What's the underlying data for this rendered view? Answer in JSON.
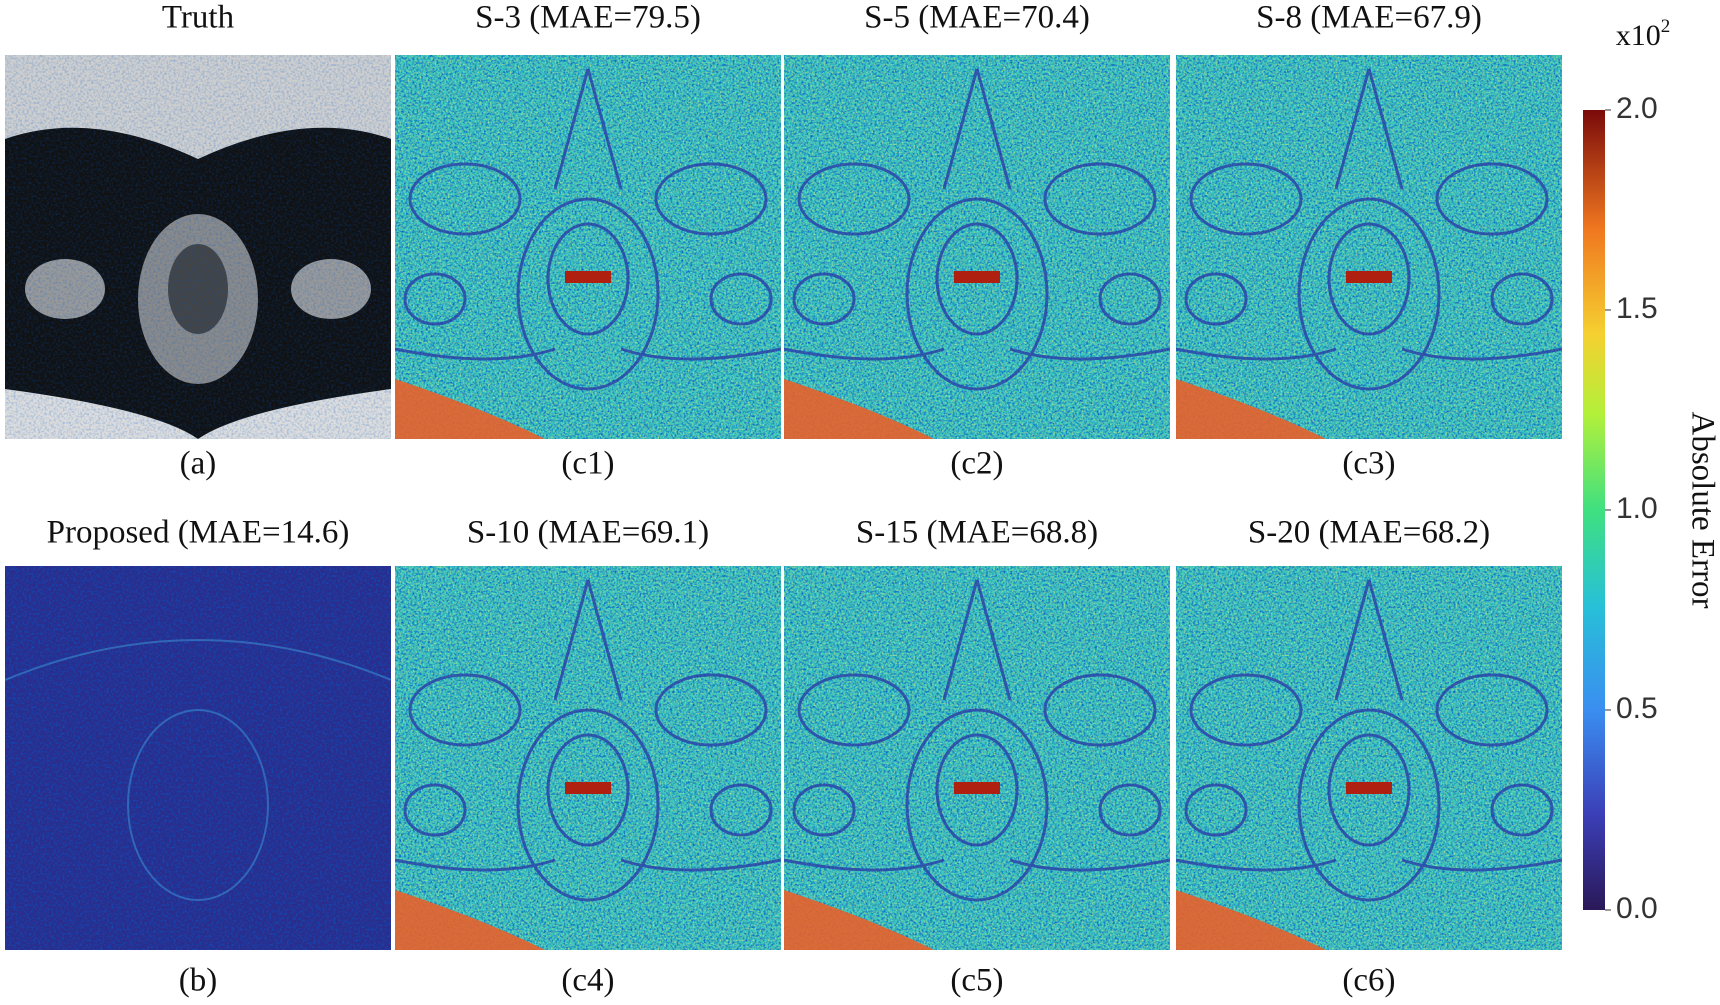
{
  "panels": [
    {
      "title": "Truth",
      "caption": "(a)"
    },
    {
      "title": "S-3 (MAE=79.5)",
      "caption": "(c1)"
    },
    {
      "title": "S-5 (MAE=70.4)",
      "caption": "(c2)"
    },
    {
      "title": "S-8 (MAE=67.9)",
      "caption": "(c3)"
    },
    {
      "title": "Proposed (MAE=14.6)",
      "caption": "(b)"
    },
    {
      "title": "S-10 (MAE=69.1)",
      "caption": "(c4)"
    },
    {
      "title": "S-15 (MAE=68.8)",
      "caption": "(c5)"
    },
    {
      "title": "S-20 (MAE=68.2)",
      "caption": "(c6)"
    }
  ],
  "colorbar": {
    "label": "Absolute Error",
    "scale_label": "x10",
    "scale_exponent": "2",
    "lim": [
      0,
      2
    ],
    "ticks": [
      {
        "value": 0,
        "label": "0.0"
      },
      {
        "value": 0.5,
        "label": "0.5"
      },
      {
        "value": 1,
        "label": "1.0"
      },
      {
        "value": 1.5,
        "label": "1.5"
      },
      {
        "value": 2,
        "label": "2.0"
      }
    ]
  }
}
